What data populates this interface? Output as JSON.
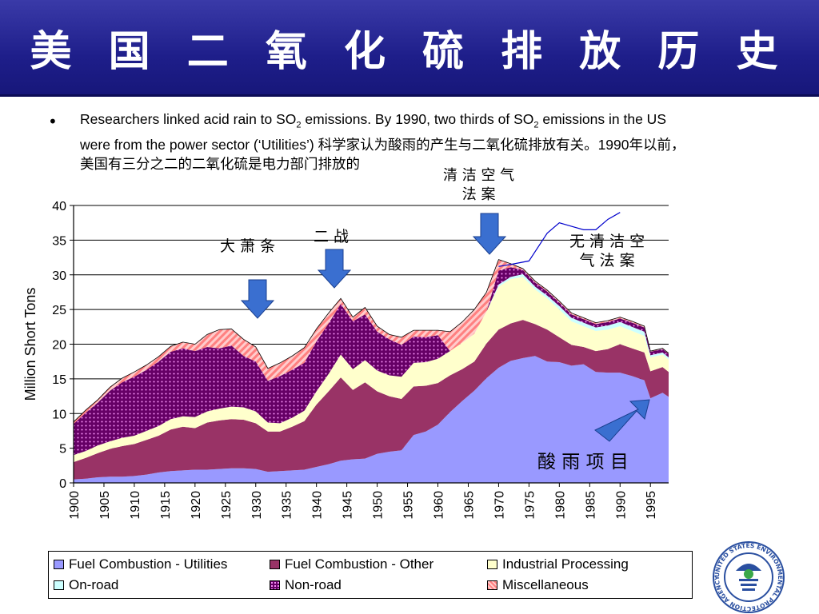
{
  "slide": {
    "title": "美 国 二 氧 化 硫 排 放 历 史",
    "bullet": {
      "symbol": "•",
      "text_parts": {
        "p1": "Researchers linked acid rain to SO",
        "sub1": "2",
        "p2": " emissions.  By 1990, two thirds of SO",
        "sub2": "2",
        "p3": " emissions in the US were from the power sector (‘Utilities’) 科学家认为酸雨的产生与二氧化硫排放有关。1990年以前，美国有三分之二的二氧化硫是电力部门排放的"
      }
    },
    "annotations": {
      "depression": "大 萧 条",
      "ww2": "二 战",
      "clean_air_act": "清 洁 空 气\n法 案",
      "no_clean_air_act": "无 清 洁 空\n气 法 案",
      "acid_rain_program": "酸 雨 项 目"
    },
    "logo": {
      "name": "epa-seal",
      "text": "UNITED STATES ENVIRONMENTAL PROTECTION AGENCY"
    }
  },
  "colors": {
    "header_bg": "#1e1e8a",
    "utilities": "#9999ff",
    "fuel_other": "#993366",
    "industrial": "#ffffcc",
    "on_road": "#ccffff",
    "non_road": "#660066",
    "misc": "#ff9999",
    "projection_line": "#0000cc",
    "arrow": "#3a6fd0"
  },
  "chart_data": {
    "type": "area",
    "stacked": true,
    "ylabel": "Million Short Tons",
    "ylim": [
      0,
      40
    ],
    "yticks": [
      0,
      5,
      10,
      15,
      20,
      25,
      30,
      35,
      40
    ],
    "xlim": [
      1900,
      1998
    ],
    "xticks": [
      1900,
      1905,
      1910,
      1915,
      1920,
      1925,
      1930,
      1935,
      1940,
      1945,
      1950,
      1955,
      1960,
      1965,
      1970,
      1975,
      1980,
      1985,
      1990,
      1995
    ],
    "grid": "horizontal",
    "legend_position": "bottom",
    "x": [
      1900,
      1902,
      1904,
      1906,
      1908,
      1910,
      1912,
      1914,
      1916,
      1918,
      1920,
      1922,
      1924,
      1926,
      1928,
      1930,
      1932,
      1934,
      1936,
      1938,
      1940,
      1942,
      1944,
      1946,
      1948,
      1950,
      1952,
      1954,
      1956,
      1958,
      1960,
      1962,
      1964,
      1966,
      1968,
      1970,
      1972,
      1974,
      1976,
      1978,
      1980,
      1982,
      1984,
      1986,
      1988,
      1990,
      1992,
      1994,
      1995,
      1996,
      1997,
      1998
    ],
    "series": [
      {
        "name": "Fuel Combustion - Utilities",
        "values": [
          0.5,
          0.6,
          0.8,
          0.9,
          0.9,
          1.0,
          1.2,
          1.5,
          1.7,
          1.8,
          1.9,
          1.9,
          2.0,
          2.1,
          2.1,
          2.0,
          1.6,
          1.7,
          1.8,
          1.9,
          2.3,
          2.7,
          3.2,
          3.4,
          3.5,
          4.2,
          4.5,
          4.7,
          6.9,
          7.4,
          8.4,
          10.2,
          11.8,
          13.3,
          15.1,
          16.6,
          17.6,
          18.0,
          18.3,
          17.5,
          17.4,
          16.9,
          17.1,
          16.0,
          15.9,
          15.9,
          15.4,
          14.8,
          12.2,
          12.6,
          13.0,
          12.4
        ]
      },
      {
        "name": "Fuel Combustion - Other",
        "values": [
          2.5,
          3.0,
          3.5,
          4.0,
          4.4,
          4.6,
          5.0,
          5.3,
          6.0,
          6.3,
          6.0,
          6.8,
          7.0,
          7.1,
          7.0,
          6.6,
          5.8,
          5.7,
          6.3,
          7.0,
          9.0,
          10.5,
          12.0,
          10.0,
          11.0,
          9.0,
          8.0,
          7.4,
          7.0,
          6.6,
          6.0,
          5.3,
          4.6,
          4.2,
          5.0,
          5.5,
          5.4,
          5.5,
          4.6,
          4.6,
          3.6,
          3.0,
          2.5,
          3.0,
          3.4,
          4.1,
          4.0,
          4.0,
          3.9,
          3.8,
          3.7,
          3.6
        ]
      },
      {
        "name": "Industrial Processing",
        "values": [
          1.0,
          1.0,
          1.1,
          1.1,
          1.2,
          1.2,
          1.3,
          1.4,
          1.5,
          1.5,
          1.6,
          1.6,
          1.7,
          1.8,
          1.8,
          1.7,
          1.3,
          1.2,
          1.3,
          1.5,
          1.9,
          2.5,
          3.3,
          3.0,
          3.2,
          3.0,
          3.0,
          3.2,
          3.4,
          3.4,
          3.5,
          3.5,
          3.8,
          4.0,
          4.6,
          6.2,
          6.4,
          6.2,
          5.0,
          4.5,
          4.0,
          3.4,
          3.0,
          2.9,
          2.8,
          2.6,
          2.5,
          2.4,
          2.0,
          1.9,
          1.8,
          1.8
        ]
      },
      {
        "name": "On-road",
        "values": [
          0,
          0,
          0,
          0,
          0,
          0,
          0,
          0,
          0,
          0,
          0,
          0,
          0,
          0,
          0,
          0,
          0,
          0,
          0,
          0,
          0,
          0,
          0,
          0,
          0,
          0,
          0,
          0,
          0,
          0,
          0,
          0,
          0,
          0,
          0,
          0.3,
          0.3,
          0.4,
          0.4,
          0.4,
          0.5,
          0.5,
          0.5,
          0.5,
          0.6,
          0.6,
          0.6,
          0.6,
          0.3,
          0.3,
          0.3,
          0.3
        ]
      },
      {
        "name": "Non-road",
        "values": [
          4.5,
          5.5,
          6.2,
          7.3,
          8.0,
          8.5,
          8.8,
          9.3,
          9.7,
          9.8,
          9.5,
          9.3,
          8.7,
          8.8,
          7.4,
          7.2,
          6.0,
          6.8,
          6.9,
          6.9,
          7.2,
          7.3,
          7.3,
          6.9,
          6.6,
          5.6,
          5.2,
          4.6,
          3.8,
          3.6,
          3.4,
          0,
          0,
          0,
          0,
          2.0,
          1.4,
          0.6,
          0.6,
          0.6,
          0.5,
          0.5,
          0.5,
          0.5,
          0.5,
          0.5,
          0.6,
          0.6,
          0.5,
          0.5,
          0.5,
          0.5
        ]
      },
      {
        "name": "On-road",
        "values": [
          0,
          0,
          0,
          0,
          0,
          0,
          0,
          0,
          0,
          0,
          0,
          0,
          0,
          0,
          0,
          0,
          0,
          0,
          0,
          0,
          0,
          0,
          0,
          0,
          0,
          0,
          0,
          0,
          0,
          0,
          0,
          0,
          0,
          0,
          0,
          0,
          0,
          0,
          0,
          0,
          0,
          0,
          0,
          0,
          0,
          0,
          0,
          0,
          0,
          0,
          0,
          0
        ]
      },
      {
        "name": "Miscellaneous",
        "values": [
          0.3,
          0.4,
          0.4,
          0.5,
          0.6,
          0.7,
          0.7,
          0.7,
          0.8,
          0.9,
          1.0,
          1.8,
          2.7,
          2.4,
          2.4,
          2.1,
          1.8,
          1.9,
          2.0,
          2.2,
          1.8,
          1.5,
          0.8,
          0.6,
          1.0,
          0.8,
          0.7,
          1.1,
          0.9,
          1.0,
          0.7,
          2.8,
          3.0,
          3.5,
          2.8,
          1.6,
          0.5,
          0.2,
          0.2,
          0.2,
          0.2,
          0.2,
          0.2,
          0.2,
          0.2,
          0.2,
          0.2,
          0.2,
          0.1,
          0.1,
          0.1,
          0.1
        ]
      }
    ],
    "projection_line": {
      "name": "No Clean Air Act",
      "x": [
        1970,
        1972,
        1975,
        1978,
        1980,
        1982,
        1984,
        1986,
        1988,
        1990
      ],
      "values": [
        31.2,
        31.5,
        32.0,
        36.0,
        37.5,
        37.0,
        36.5,
        36.5,
        38.0,
        39.0
      ]
    },
    "legend_entries": [
      "Fuel Combustion - Utilities",
      "Fuel Combustion - Other",
      "Industrial Processing",
      "On-road",
      "Non-road",
      "Miscellaneous"
    ]
  }
}
